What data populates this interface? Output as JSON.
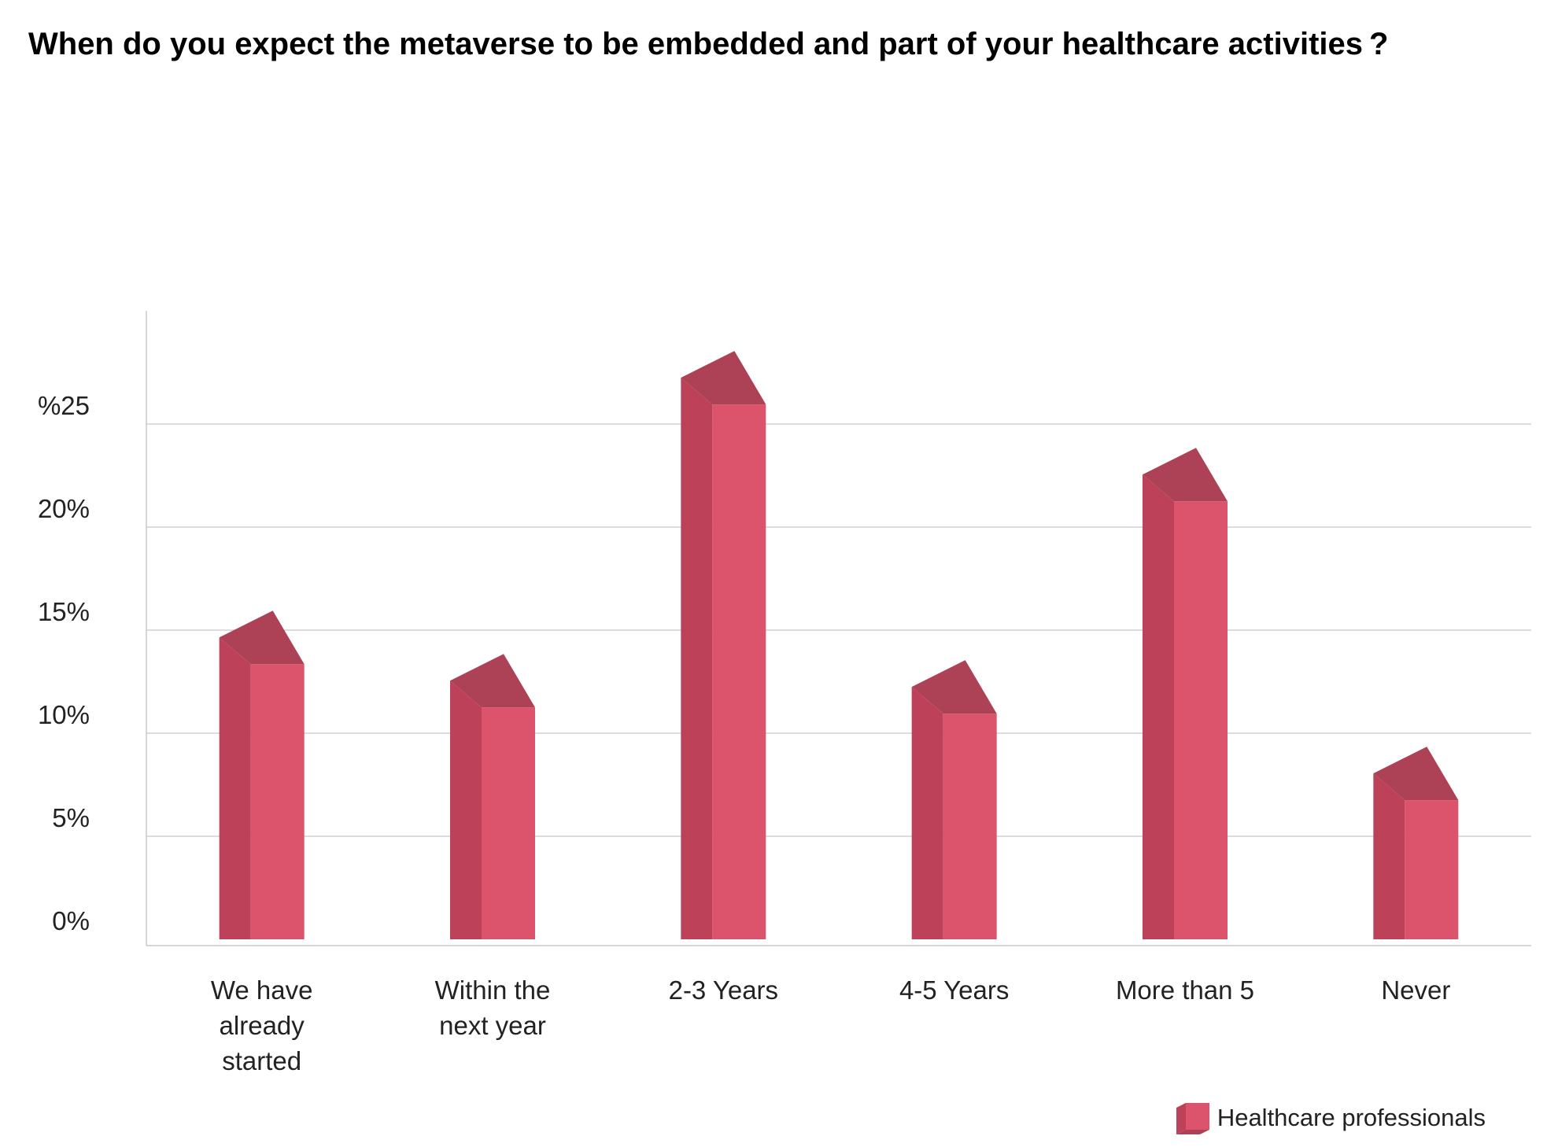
{
  "chart_data": {
    "type": "bar",
    "title": "When do you expect the metaverse to be embedded and part of your healthcare activities ?",
    "categories": [
      [
        "We have",
        "already",
        "started"
      ],
      [
        "Within the",
        "next year"
      ],
      [
        "2-3 Years"
      ],
      [
        "4-5 Years"
      ],
      [
        "More than 5"
      ],
      [
        "Never"
      ]
    ],
    "series": [
      {
        "name": "Healthcare professionals",
        "values": [
          14.0,
          11.9,
          26.6,
          11.6,
          21.9,
          7.4
        ]
      }
    ],
    "yticks": [
      {
        "value": 0,
        "label": "0%"
      },
      {
        "value": 5,
        "label": "5%"
      },
      {
        "value": 10,
        "label": "10%"
      },
      {
        "value": 15,
        "label": "15%"
      },
      {
        "value": 20,
        "label": "20%"
      },
      {
        "value": 25,
        "label": "%25"
      }
    ],
    "ylim": [
      0,
      30
    ],
    "grid": true,
    "legend_position": "bottom-right",
    "colors": {
      "bar_front": "#dc546b",
      "bar_side": "#bc4159",
      "bar_top": "#ad4257",
      "grid": "#d0d0d0",
      "axis": "#c8c8c8"
    }
  }
}
